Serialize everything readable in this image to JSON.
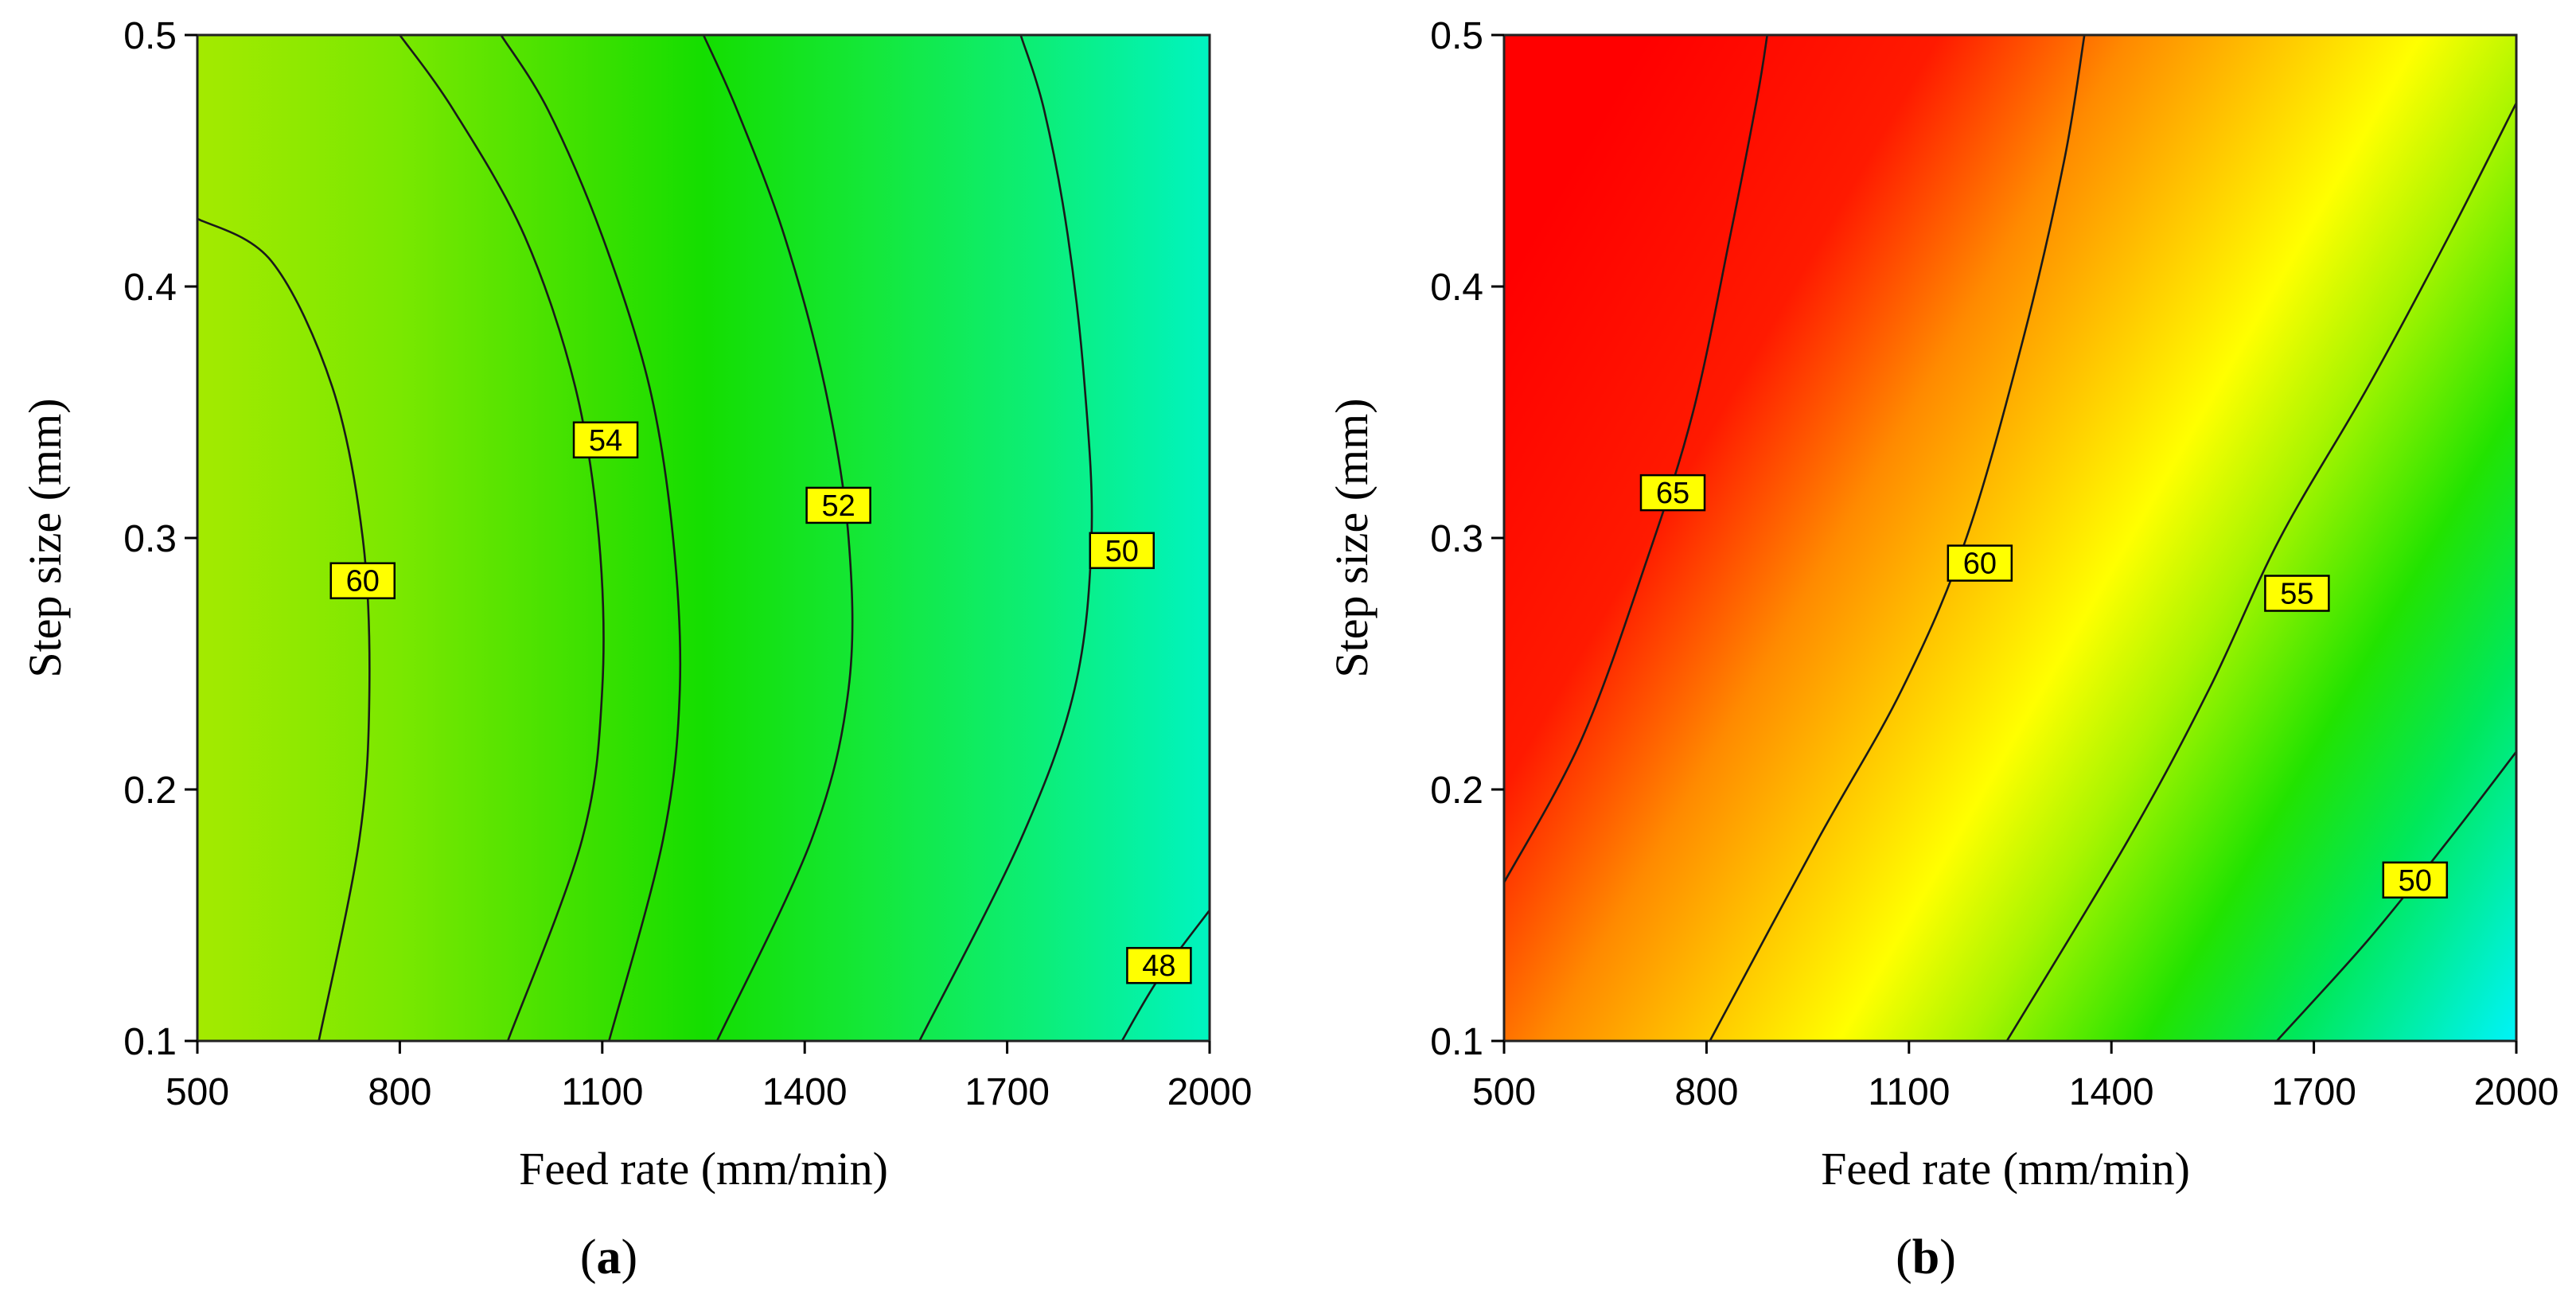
{
  "chart_data": [
    {
      "type": "contour",
      "panel": "a",
      "xlabel": "Feed rate (mm/min)",
      "ylabel": "Step size (mm)",
      "xlim": [
        500,
        2000
      ],
      "ylim": [
        0.1,
        0.5
      ],
      "xticks": [
        500,
        800,
        1100,
        1400,
        1700,
        2000
      ],
      "xtick_labels": [
        "500",
        "800",
        "1100",
        "1400",
        "1700",
        "2000"
      ],
      "yticks": [
        0.1,
        0.2,
        0.3,
        0.4,
        0.5
      ],
      "ytick_labels": [
        "0.1",
        "0.2",
        "0.3",
        "0.4",
        "0.5"
      ],
      "colormap": {
        "direction": "left-to-right",
        "stops": [
          {
            "x": 500,
            "color": "#a4ea00"
          },
          {
            "x": 800,
            "color": "#7ae800"
          },
          {
            "x": 1100,
            "color": "#38e000"
          },
          {
            "x": 1250,
            "color": "#14de00"
          },
          {
            "x": 1500,
            "color": "#14e83a"
          },
          {
            "x": 1750,
            "color": "#0cee78"
          },
          {
            "x": 2000,
            "color": "#00f4c0"
          }
        ]
      },
      "contours": [
        {
          "label": "60",
          "points": [
            [
              680,
              0.1
            ],
            [
              740,
              0.18
            ],
            [
              755,
              0.24
            ],
            [
              745,
              0.3
            ],
            [
              700,
              0.36
            ],
            [
              610,
              0.41
            ],
            [
              500,
              0.427
            ]
          ],
          "label_at": [
            745,
            0.283
          ]
        },
        {
          "label": "",
          "points": [
            [
              960,
              0.1
            ],
            [
              1070,
              0.18
            ],
            [
              1100,
              0.24
            ],
            [
              1095,
              0.3
            ],
            [
              1060,
              0.36
            ],
            [
              985,
              0.42
            ],
            [
              880,
              0.47
            ],
            [
              800,
              0.5
            ]
          ]
        },
        {
          "label": "54",
          "points": [
            [
              1110,
              0.1
            ],
            [
              1190,
              0.18
            ],
            [
              1215,
              0.24
            ],
            [
              1205,
              0.3
            ],
            [
              1170,
              0.36
            ],
            [
              1100,
              0.42
            ],
            [
              1020,
              0.47
            ],
            [
              950,
              0.5
            ]
          ],
          "label_at": [
            1105,
            0.339
          ]
        },
        {
          "label": "52",
          "points": [
            [
              1270,
              0.1
            ],
            [
              1410,
              0.18
            ],
            [
              1465,
              0.24
            ],
            [
              1465,
              0.3
            ],
            [
              1430,
              0.36
            ],
            [
              1370,
              0.42
            ],
            [
              1300,
              0.47
            ],
            [
              1250,
              0.5
            ]
          ],
          "label_at": [
            1450,
            0.313
          ]
        },
        {
          "label": "50",
          "points": [
            [
              1570,
              0.1
            ],
            [
              1720,
              0.18
            ],
            [
              1800,
              0.24
            ],
            [
              1825,
              0.3
            ],
            [
              1815,
              0.36
            ],
            [
              1790,
              0.42
            ],
            [
              1755,
              0.47
            ],
            [
              1720,
              0.5
            ]
          ],
          "label_at": [
            1870,
            0.295
          ]
        },
        {
          "label": "48",
          "points": [
            [
              1870,
              0.1
            ],
            [
              1925,
              0.125
            ],
            [
              2000,
              0.152
            ]
          ],
          "label_at": [
            1925,
            0.13
          ]
        }
      ],
      "panel_label": "(a)"
    },
    {
      "type": "contour",
      "panel": "b",
      "xlabel": "Feed rate (mm/min)",
      "ylabel": "Step size (mm)",
      "xlim": [
        500,
        2000
      ],
      "ylim": [
        0.1,
        0.5
      ],
      "xticks": [
        500,
        800,
        1100,
        1400,
        1700,
        2000
      ],
      "xtick_labels": [
        "500",
        "800",
        "1100",
        "1400",
        "1700",
        "2000"
      ],
      "yticks": [
        0.1,
        0.2,
        0.3,
        0.4,
        0.5
      ],
      "ytick_labels": [
        "0.1",
        "0.2",
        "0.3",
        "0.4",
        "0.5"
      ],
      "colormap": {
        "direction": "diagonal",
        "stops": [
          {
            "offset": 0.0,
            "color": "#ff0000"
          },
          {
            "offset": 0.2,
            "color": "#ff1a00"
          },
          {
            "offset": 0.33,
            "color": "#ff8a00"
          },
          {
            "offset": 0.45,
            "color": "#ffd000"
          },
          {
            "offset": 0.53,
            "color": "#ffff00"
          },
          {
            "offset": 0.62,
            "color": "#aaf500"
          },
          {
            "offset": 0.74,
            "color": "#22e300"
          },
          {
            "offset": 0.84,
            "color": "#00e85a"
          },
          {
            "offset": 1.0,
            "color": "#00f4ff"
          }
        ]
      },
      "contours": [
        {
          "label": "65",
          "points": [
            [
              500,
              0.163
            ],
            [
              615,
              0.22
            ],
            [
              710,
              0.29
            ],
            [
              780,
              0.35
            ],
            [
              835,
              0.42
            ],
            [
              875,
              0.475
            ],
            [
              890,
              0.5
            ]
          ],
          "label_at": [
            750,
            0.318
          ]
        },
        {
          "label": "60",
          "points": [
            [
              805,
              0.1
            ],
            [
              965,
              0.18
            ],
            [
              1090,
              0.24
            ],
            [
              1185,
              0.3
            ],
            [
              1270,
              0.38
            ],
            [
              1330,
              0.45
            ],
            [
              1360,
              0.5
            ]
          ],
          "label_at": [
            1205,
            0.29
          ]
        },
        {
          "label": "55",
          "points": [
            [
              1245,
              0.1
            ],
            [
              1425,
              0.18
            ],
            [
              1545,
              0.24
            ],
            [
              1650,
              0.3
            ],
            [
              1780,
              0.36
            ],
            [
              1900,
              0.42
            ],
            [
              2000,
              0.473
            ]
          ],
          "label_at": [
            1675,
            0.278
          ]
        },
        {
          "label": "50",
          "points": [
            [
              1645,
              0.1
            ],
            [
              1780,
              0.14
            ],
            [
              1900,
              0.18
            ],
            [
              2000,
              0.215
            ]
          ],
          "label_at": [
            1850,
            0.164
          ]
        }
      ],
      "panel_label": "(b)"
    }
  ]
}
